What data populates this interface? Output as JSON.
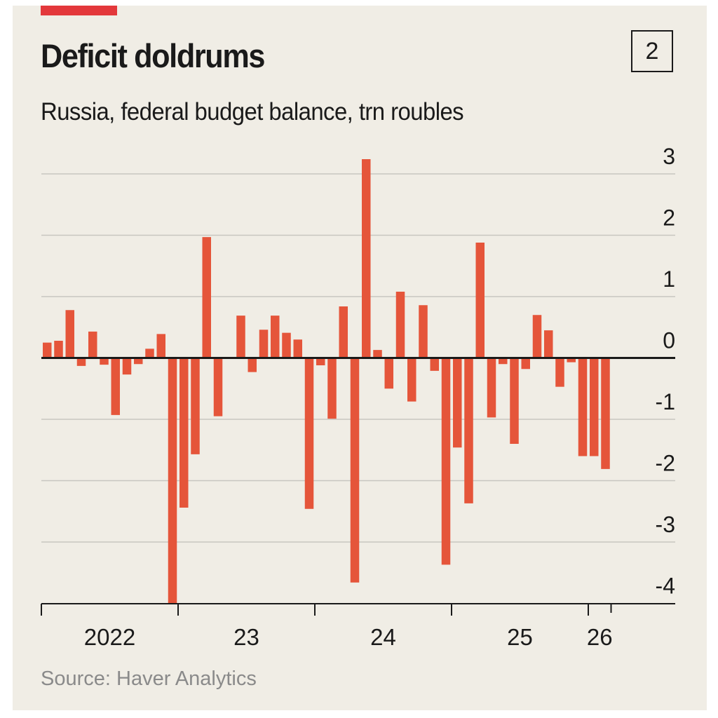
{
  "header": {
    "title": "Deficit doldrums",
    "subtitle": "Russia, federal budget balance, trn roubles",
    "chart_number": "2"
  },
  "footer": {
    "source": "Source: Haver Analytics"
  },
  "colors": {
    "background": "#f0ede5",
    "bar": "#e5553a",
    "accent_tag": "#e3383b",
    "gridline": "#c8c6c0",
    "axis": "#1a1a1a",
    "source_text": "#8a8a8a"
  },
  "chart_data": {
    "type": "bar",
    "title": "Deficit doldrums",
    "subtitle": "Russia, federal budget balance, trn roubles",
    "xlabel": "",
    "ylabel": "trn roubles",
    "frequency": "monthly",
    "start": "2022-01",
    "end": "2026-02",
    "ylim": [
      -4,
      3
    ],
    "yticks": [
      3,
      2,
      1,
      0,
      -1,
      -2,
      -3,
      -4
    ],
    "ytick_labels": [
      "3",
      "2",
      "1",
      "0",
      "-1",
      "-2",
      "-3",
      "-4"
    ],
    "y_axis_side": "right",
    "grid": true,
    "x_ticks": [
      {
        "label": "2022",
        "month_index": 0
      },
      {
        "label": "23",
        "month_index": 12
      },
      {
        "label": "24",
        "month_index": 24
      },
      {
        "label": "25",
        "month_index": 36
      },
      {
        "label": "26",
        "month_index": 48
      }
    ],
    "x_end_month_index": 50,
    "categories": [
      "2022-01",
      "2022-02",
      "2022-03",
      "2022-04",
      "2022-05",
      "2022-06",
      "2022-07",
      "2022-08",
      "2022-09",
      "2022-10",
      "2022-11",
      "2022-12",
      "2023-01",
      "2023-02",
      "2023-03",
      "2023-04",
      "2023-05",
      "2023-06",
      "2023-07",
      "2023-08",
      "2023-09",
      "2023-10",
      "2023-11",
      "2023-12",
      "2024-01",
      "2024-02",
      "2024-03",
      "2024-04",
      "2024-05",
      "2024-06",
      "2024-07",
      "2024-08",
      "2024-09",
      "2024-10",
      "2024-11",
      "2024-12",
      "2025-01",
      "2025-02",
      "2025-03",
      "2025-04",
      "2025-05",
      "2025-06",
      "2025-07",
      "2025-08",
      "2025-09",
      "2025-10",
      "2025-11",
      "2025-12",
      "2026-01",
      "2026-02"
    ],
    "values": [
      0.25,
      0.28,
      0.78,
      -0.13,
      0.43,
      -0.11,
      -0.93,
      -0.27,
      -0.1,
      0.15,
      0.39,
      -4.0,
      -2.44,
      -1.57,
      1.97,
      -0.95,
      0.0,
      0.69,
      -0.23,
      0.46,
      0.69,
      0.41,
      0.3,
      -2.46,
      -0.12,
      -0.99,
      0.84,
      -3.66,
      3.24,
      0.13,
      -0.5,
      1.08,
      -0.71,
      0.86,
      -0.21,
      -3.37,
      -1.46,
      -2.37,
      1.88,
      -0.97,
      -0.1,
      -1.4,
      -0.18,
      0.7,
      0.45,
      -0.47,
      -0.07,
      -1.6,
      -1.6,
      -1.81
    ],
    "legend": "none"
  }
}
